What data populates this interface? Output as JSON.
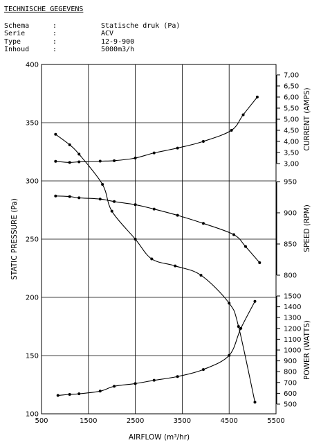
{
  "header": {
    "title": "TECHNISCHE GEGEVENS",
    "specs": [
      {
        "label": "Schema",
        "sep": ":",
        "value": "Statische druk (Pa)"
      },
      {
        "label": "Serie",
        "sep": ":",
        "value": "ACV"
      },
      {
        "label": "Type",
        "sep": ":",
        "value": "12-9-900"
      },
      {
        "label": "Inhoud",
        "sep": ":",
        "value": "5000m3/h"
      }
    ]
  },
  "chart_data": {
    "type": "line",
    "xlabel": "AIRFLOW (m³/hr)",
    "xlim": [
      500,
      5500
    ],
    "x_ticks": [
      "500",
      "1500",
      "2500",
      "3500",
      "4500",
      "5500"
    ],
    "grid": true,
    "axes": {
      "pressure": {
        "label": "STATIC PRESSURE (Pa)",
        "range": [
          100,
          400
        ],
        "ticks": [
          "100",
          "150",
          "200",
          "250",
          "300",
          "350",
          "400"
        ]
      },
      "current": {
        "label": "CURRENT (AMPS)",
        "range": [
          3.0,
          7.0
        ],
        "ticks": [
          "3,00",
          "3,50",
          "4,00",
          "4,50",
          "5,00",
          "5,50",
          "6,00",
          "6,50",
          "7,00"
        ]
      },
      "speed": {
        "label": "SPEED (RPM)",
        "range": [
          800,
          950
        ],
        "ticks": [
          "800",
          "850",
          "900",
          "950"
        ]
      },
      "power": {
        "label": "POWER (WATTS)",
        "range": [
          500,
          1500
        ],
        "ticks": [
          "500",
          "600",
          "700",
          "800",
          "900",
          "1000",
          "1100",
          "1200",
          "1300",
          "1400",
          "1500"
        ]
      }
    },
    "series": [
      {
        "axis": "pressure",
        "points": [
          [
            800,
            340
          ],
          [
            1100,
            331
          ],
          [
            1300,
            323
          ],
          [
            1800,
            297
          ],
          [
            2000,
            274
          ],
          [
            2500,
            250
          ],
          [
            2850,
            233
          ],
          [
            3350,
            227
          ],
          [
            3900,
            219
          ],
          [
            4500,
            195
          ],
          [
            4700,
            175
          ],
          [
            5050,
            110
          ]
        ]
      },
      {
        "axis": "current",
        "points": [
          [
            800,
            3.1
          ],
          [
            1100,
            3.05
          ],
          [
            1300,
            3.08
          ],
          [
            1750,
            3.11
          ],
          [
            2050,
            3.13
          ],
          [
            2500,
            3.25
          ],
          [
            2900,
            3.48
          ],
          [
            3400,
            3.7
          ],
          [
            3950,
            4.0
          ],
          [
            4550,
            4.5
          ],
          [
            4800,
            5.2
          ],
          [
            5100,
            6.0
          ]
        ]
      },
      {
        "axis": "speed",
        "points": [
          [
            800,
            927
          ],
          [
            1100,
            926
          ],
          [
            1300,
            924
          ],
          [
            1750,
            922
          ],
          [
            2050,
            918
          ],
          [
            2500,
            913
          ],
          [
            2900,
            906
          ],
          [
            3400,
            896
          ],
          [
            3950,
            883
          ],
          [
            4600,
            865
          ],
          [
            4850,
            846
          ],
          [
            5150,
            820
          ]
        ]
      },
      {
        "axis": "power",
        "points": [
          [
            850,
            580
          ],
          [
            1100,
            590
          ],
          [
            1300,
            595
          ],
          [
            1750,
            620
          ],
          [
            2050,
            665
          ],
          [
            2500,
            690
          ],
          [
            2900,
            720
          ],
          [
            3400,
            755
          ],
          [
            3950,
            820
          ],
          [
            4500,
            950
          ],
          [
            4750,
            1200
          ],
          [
            5050,
            1450
          ]
        ]
      }
    ]
  }
}
